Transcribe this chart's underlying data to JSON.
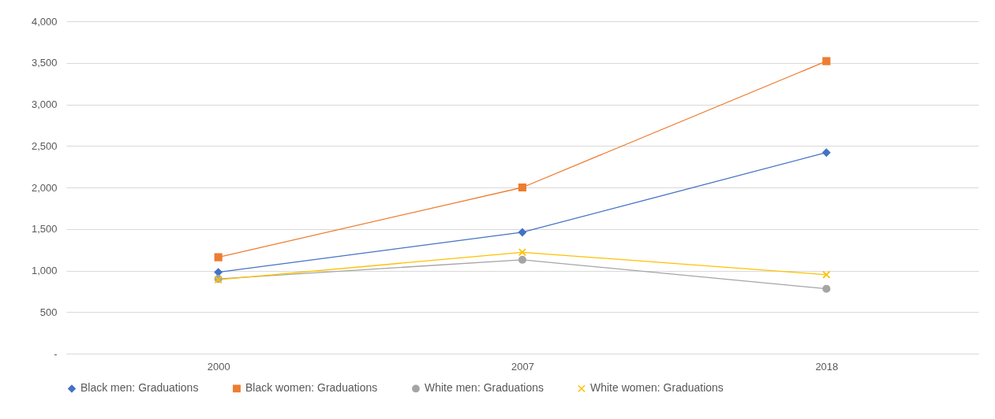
{
  "chart_data": {
    "type": "line",
    "categories": [
      "2000",
      "2007",
      "2018"
    ],
    "series": [
      {
        "name": "Black men: Graduations",
        "color": "#4472c4",
        "marker": "diamond",
        "values": [
          980,
          1460,
          2420
        ]
      },
      {
        "name": "Black women: Graduations",
        "color": "#ed7d31",
        "marker": "square",
        "values": [
          1160,
          2000,
          3520
        ]
      },
      {
        "name": "White men: Graduations",
        "color": "#a5a5a5",
        "marker": "circle",
        "values": [
          900,
          1130,
          780
        ]
      },
      {
        "name": "White women: Graduations",
        "color": "#ffc000",
        "marker": "cross",
        "values": [
          890,
          1220,
          950
        ]
      }
    ],
    "ylim": [
      0,
      4000
    ],
    "yticks": [
      {
        "value": 0,
        "label": "-"
      },
      {
        "value": 500,
        "label": "500"
      },
      {
        "value": 1000,
        "label": "1,000"
      },
      {
        "value": 1500,
        "label": "1,500"
      },
      {
        "value": 2000,
        "label": "2,000"
      },
      {
        "value": 2500,
        "label": "2,500"
      },
      {
        "value": 3000,
        "label": "3,000"
      },
      {
        "value": 3500,
        "label": "3,500"
      },
      {
        "value": 4000,
        "label": "4,000"
      }
    ],
    "grid": "y",
    "legend": "bottom"
  }
}
